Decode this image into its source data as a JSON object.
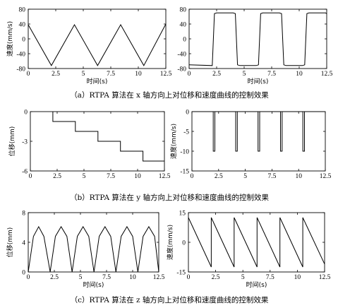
{
  "captions": {
    "a": "（a）RTPA 算法在 x 轴方向上对位移和速度曲线的控制效果",
    "b": "（b）RTPA 算法在 y 轴方向上对位移和速度曲线的控制效果",
    "c": "（c）RTPA 算法在 z 轴方向上对位移和速度曲线的控制效果"
  },
  "chart_data": [
    {
      "id": "a-left",
      "type": "line",
      "xlabel": "时间(s)",
      "ylabel": "速度(mm/s)",
      "xlim": [
        0,
        12.5
      ],
      "ylim": [
        -80,
        80
      ],
      "xticks": [
        "0",
        "2.5",
        "5",
        "7.5",
        "10",
        "12.5"
      ],
      "yticks": [
        "80",
        "40",
        "0",
        "-40",
        "-80"
      ],
      "series": [
        {
          "x": [
            0,
            2.1,
            4.2,
            6.3,
            8.4,
            10.5,
            12.5
          ],
          "values": [
            38,
            -72,
            38,
            -72,
            38,
            -72,
            40
          ]
        }
      ]
    },
    {
      "id": "a-right",
      "type": "line",
      "xlabel": "时间(s)",
      "ylabel": "",
      "xlim": [
        0,
        12.5
      ],
      "ylim": [
        -80,
        80
      ],
      "xticks": [
        "0",
        "2.5",
        "5",
        "7.5",
        "10",
        "12.5"
      ],
      "yticks": [
        "80",
        "40",
        "0",
        "-40",
        "-80"
      ],
      "series": [
        {
          "x": [
            0,
            2.1,
            2.3,
            2.5,
            4.0,
            4.2,
            4.4,
            4.6,
            6.1,
            6.3,
            6.5,
            6.7,
            8.2,
            8.4,
            8.6,
            8.8,
            10.3,
            10.5,
            10.7,
            10.9,
            12.4,
            12.5
          ],
          "values": [
            -70,
            -72,
            68,
            70,
            70,
            68,
            -70,
            -72,
            -72,
            -70,
            68,
            70,
            70,
            68,
            -70,
            -72,
            -72,
            -70,
            68,
            70,
            70,
            68
          ]
        }
      ]
    },
    {
      "id": "b-left",
      "type": "line",
      "xlabel": "",
      "ylabel": "位移(mm)",
      "xlim": [
        0,
        12.5
      ],
      "ylim": [
        -6,
        0
      ],
      "xticks": [
        "0",
        "2.5",
        "5",
        "7.5",
        "10",
        "12.5"
      ],
      "yticks": [
        "0",
        "-3",
        "-6"
      ],
      "series": [
        {
          "x": [
            2.1,
            2.1,
            4.2,
            4.2,
            6.3,
            6.3,
            8.4,
            8.4,
            10.5,
            10.5,
            12.5
          ],
          "values": [
            0,
            -1.0,
            -1.0,
            -2.0,
            -2.0,
            -3.0,
            -3.0,
            -4.0,
            -4.0,
            -5.0,
            -5.0
          ]
        }
      ]
    },
    {
      "id": "b-right",
      "type": "line",
      "xlabel": "",
      "ylabel": "速度(mm/s)",
      "xlim": [
        0,
        12.5
      ],
      "ylim": [
        -15,
        0
      ],
      "xticks": [
        "0",
        "2.5",
        "5",
        "7.5",
        "10",
        "12.5"
      ],
      "yticks": [
        "0",
        "-5",
        "-10",
        "-15"
      ],
      "series": [
        {
          "x": [
            0,
            2.0,
            2.0,
            2.15,
            2.15,
            4.1,
            4.1,
            4.25,
            4.25,
            6.2,
            6.2,
            6.35,
            6.35,
            8.3,
            8.3,
            8.45,
            8.45,
            10.4,
            10.4,
            10.55,
            10.55,
            12.5
          ],
          "values": [
            0,
            0,
            -10,
            -10,
            0,
            0,
            -10,
            -10,
            0,
            0,
            -10,
            -10,
            0,
            0,
            -10,
            -10,
            0,
            0,
            -10,
            -10,
            0,
            0
          ]
        }
      ]
    },
    {
      "id": "c-left",
      "type": "line",
      "xlabel": "时间(s)",
      "ylabel": "位移(mm)",
      "xlim": [
        0,
        12.5
      ],
      "ylim": [
        0,
        8
      ],
      "xticks": [
        "0",
        "2.5",
        "5",
        "7.5",
        "10",
        "12.5"
      ],
      "yticks": [
        "8",
        "4",
        "0"
      ],
      "series": [
        {
          "x": [
            0,
            0.5,
            1.0,
            1.5,
            2.1,
            2.6,
            3.15,
            3.7,
            4.2,
            4.7,
            5.25,
            5.8,
            6.3,
            6.8,
            7.35,
            7.9,
            8.4,
            8.9,
            9.45,
            10.0,
            10.5,
            11.0,
            11.55,
            12.1,
            12.5
          ],
          "values": [
            0,
            4.8,
            6.1,
            4.8,
            0,
            4.8,
            6.1,
            4.8,
            0,
            4.8,
            6.1,
            4.8,
            0,
            4.8,
            6.1,
            4.8,
            0,
            4.8,
            6.1,
            4.8,
            0,
            4.8,
            6.1,
            4.8,
            0
          ]
        }
      ]
    },
    {
      "id": "c-right",
      "type": "line",
      "xlabel": "时间(s)",
      "ylabel": "速度(mm/s)",
      "xlim": [
        0,
        12.5
      ],
      "ylim": [
        -15,
        15
      ],
      "xticks": [
        "0",
        "2.5",
        "5",
        "7.5",
        "10",
        "12.5"
      ],
      "yticks": [
        "15",
        "0",
        "-15"
      ],
      "series": [
        {
          "x": [
            0,
            2.1,
            2.1,
            4.2,
            4.2,
            6.3,
            6.3,
            8.4,
            8.4,
            10.5,
            10.5,
            12.5
          ],
          "values": [
            12.5,
            -12.5,
            12.5,
            -12.5,
            12.5,
            -12.5,
            12.5,
            -12.5,
            12.5,
            -12.5,
            12.5,
            -11.0
          ]
        }
      ]
    }
  ]
}
